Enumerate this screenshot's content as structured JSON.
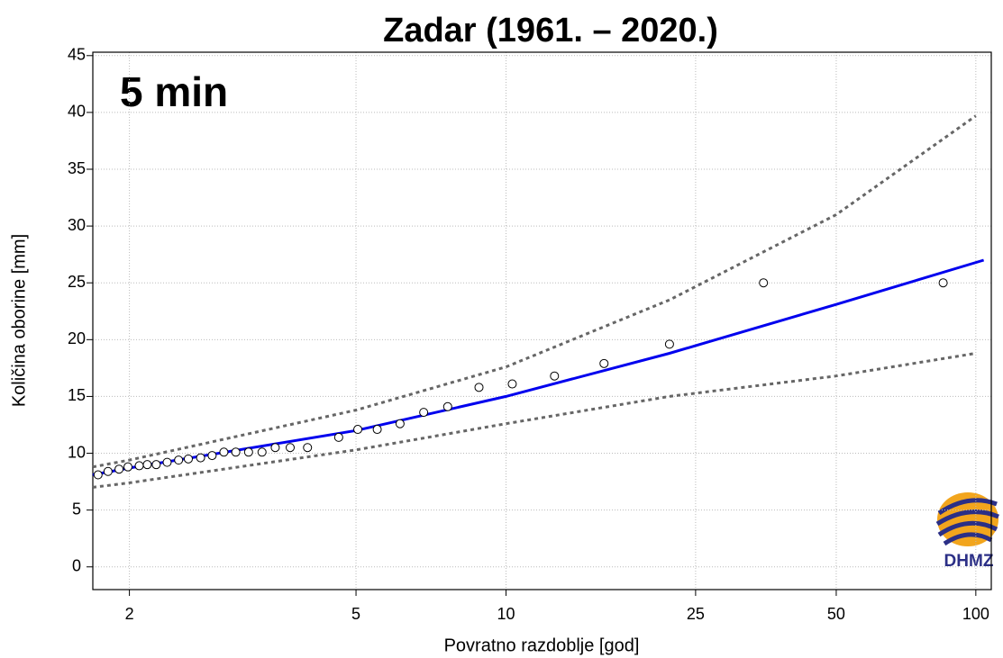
{
  "chart_data": {
    "type": "return-period",
    "title": "Zadar (1961. – 2020.)",
    "annotation": "5 min",
    "logo": "DHMZ",
    "x_label": "Povratno razdoblje [god]",
    "y_label": "Količina oborine [mm]",
    "xscale": "gumbel",
    "xlim": [
      1.77,
      108
    ],
    "ylim": [
      -2,
      45.3
    ],
    "xticks": [
      2,
      5,
      10,
      25,
      50,
      100
    ],
    "yticks": [
      0,
      5,
      10,
      15,
      20,
      25,
      30,
      35,
      40,
      45
    ],
    "grid": true,
    "points": {
      "x": [
        85,
        34.9,
        22.0,
        16.0,
        12.6,
        10.3,
        8.8,
        7.6,
        6.8,
        6.1,
        5.5,
        5.04,
        4.63,
        4.04,
        3.75,
        3.52,
        3.33,
        3.15,
        2.99,
        2.85,
        2.72,
        2.6,
        2.48,
        2.39,
        2.29,
        2.2,
        2.13,
        2.07,
        1.99,
        1.93,
        1.86,
        1.8
      ],
      "values": [
        25.0,
        25.0,
        19.6,
        17.9,
        16.8,
        16.1,
        15.8,
        14.1,
        13.6,
        12.6,
        12.1,
        12.1,
        11.4,
        10.5,
        10.5,
        10.5,
        10.1,
        10.1,
        10.1,
        10.1,
        9.8,
        9.6,
        9.5,
        9.4,
        9.2,
        9.0,
        9.0,
        8.9,
        8.8,
        8.6,
        8.4,
        8.1
      ],
      "color": "#000000"
    },
    "series": [
      {
        "x": [
          1.77,
          2,
          5,
          10,
          22,
          50,
          104
        ],
        "values": [
          8.1,
          8.7,
          12.0,
          15.0,
          18.8,
          23.1,
          27.0
        ],
        "color": "#0000ee",
        "style": "solid"
      },
      {
        "x": [
          1.77,
          2,
          5,
          10,
          22,
          50,
          100
        ],
        "values": [
          8.8,
          9.4,
          13.8,
          17.6,
          23.5,
          31.0,
          39.7
        ],
        "color": "#666666",
        "style": "dotted"
      },
      {
        "x": [
          1.77,
          2,
          5,
          10,
          22,
          50,
          100
        ],
        "values": [
          7.0,
          7.4,
          10.3,
          12.6,
          15.0,
          16.8,
          18.8
        ],
        "color": "#666666",
        "style": "dotted"
      }
    ]
  }
}
